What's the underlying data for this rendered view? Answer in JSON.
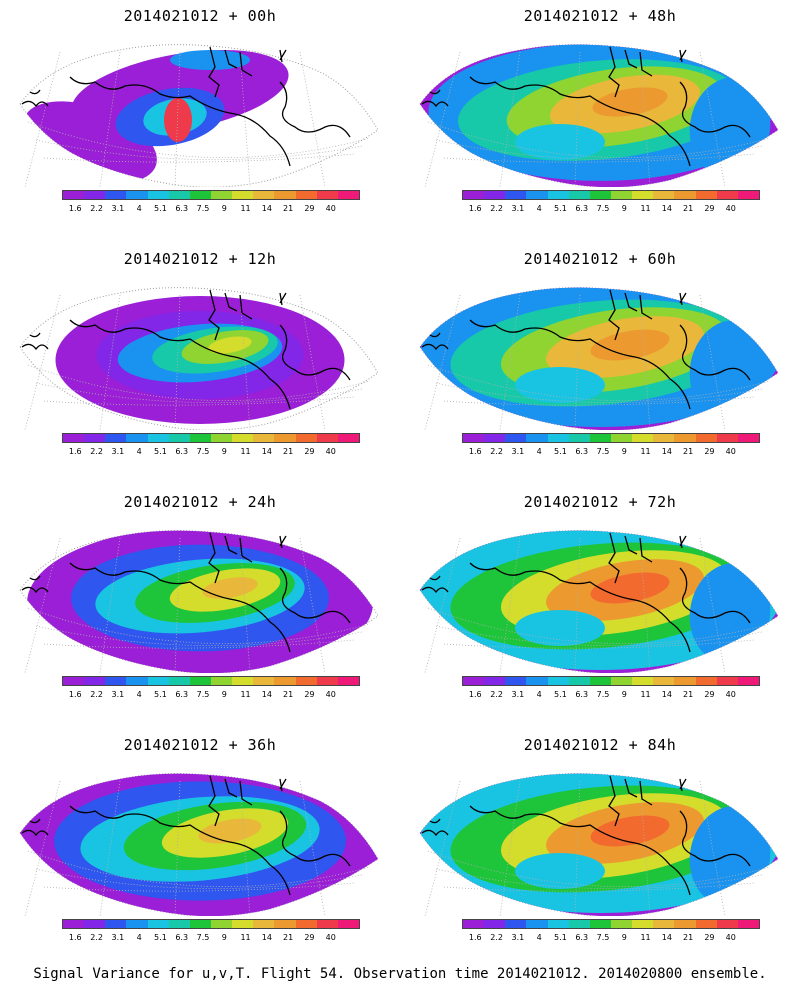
{
  "panels": [
    {
      "title": "2014021012 + 00h",
      "stage": 0
    },
    {
      "title": "2014021012 + 48h",
      "stage": 4
    },
    {
      "title": "2014021012 + 12h",
      "stage": 1
    },
    {
      "title": "2014021012 + 60h",
      "stage": 5
    },
    {
      "title": "2014021012 + 24h",
      "stage": 2
    },
    {
      "title": "2014021012 + 72h",
      "stage": 6
    },
    {
      "title": "2014021012 + 36h",
      "stage": 3
    },
    {
      "title": "2014021012 + 84h",
      "stage": 7
    }
  ],
  "colorbar": {
    "colors": [
      "#9b1fd6",
      "#8226e8",
      "#2f56ef",
      "#1a93f0",
      "#19c4e2",
      "#17c9a8",
      "#1ec43a",
      "#8fd431",
      "#d4dd2b",
      "#e9b83a",
      "#ec9a30",
      "#f26a2e",
      "#ee3a4a",
      "#ef1a78"
    ],
    "labels": [
      "1.6",
      "2.2",
      "3.1",
      "4",
      "5.1",
      "6.3",
      "7.5",
      "9",
      "11",
      "14",
      "21",
      "29",
      "40"
    ]
  },
  "footer": "Signal Variance for u,v,T. Flight 54. Observation time 2014021012. 2014020800 ensemble."
}
